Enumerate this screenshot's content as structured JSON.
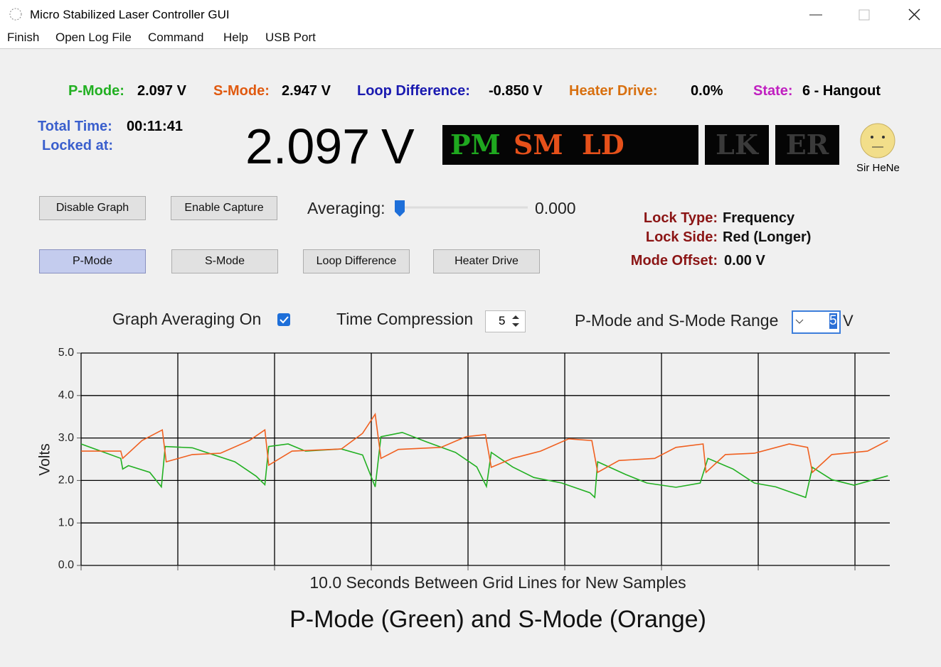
{
  "window": {
    "title": "Micro Stabilized Laser Controller GUI"
  },
  "menu": [
    "Finish",
    "Open Log File",
    "Command",
    "Help",
    "USB Port"
  ],
  "status": [
    {
      "label": "P-Mode:",
      "value": "2.097 V"
    },
    {
      "label": "S-Mode:",
      "value": "2.947 V"
    },
    {
      "label": "Loop Difference:",
      "value": "-0.850 V"
    },
    {
      "label": "Heater Drive:",
      "value": "0.0%"
    },
    {
      "label": "State:",
      "value": "6 - Hangout"
    }
  ],
  "timing": {
    "total_label": "Total Time:",
    "total_value": "00:11:41",
    "locked_label": "Locked at:"
  },
  "big_readout": {
    "value": "2.097",
    "unit": "V"
  },
  "indicators": [
    "PM",
    "SM",
    "LD",
    "LK",
    "ER"
  ],
  "avatar": "Sir HeNe",
  "buttons": [
    "Disable Graph",
    "Enable Capture"
  ],
  "averaging": {
    "label": "Averaging:",
    "value": "0.000"
  },
  "mode_buttons": [
    "P-Mode",
    "S-Mode",
    "Loop Difference",
    "Heater Drive"
  ],
  "lock": [
    {
      "label": "Lock Type:",
      "value": "Frequency"
    },
    {
      "label": "Lock Side:",
      "value": "Red (Longer)"
    },
    {
      "label": "Mode Offset:",
      "value": "0.00 V"
    }
  ],
  "options": {
    "graph_averaging": "Graph Averaging On",
    "time_compression": "Time Compression",
    "time_compression_value": "5",
    "range_label": "P-Mode and S-Mode Range",
    "range_value": "5",
    "range_unit": "V"
  },
  "chart_data": {
    "type": "line",
    "title": "P-Mode (Green) and S-Mode (Orange)",
    "xlabel": "10.0 Seconds Between Grid Lines for New Samples",
    "ylabel": "Volts",
    "xlim": [
      0,
      83.6
    ],
    "xticks": [
      0,
      10,
      20,
      30,
      40,
      50,
      60,
      70,
      80
    ],
    "ylim": [
      0,
      5
    ],
    "yticks": [
      {
        "value": 0,
        "label": "0.0"
      },
      {
        "value": 1,
        "label": "1.0"
      },
      {
        "value": 2,
        "label": "2.0"
      },
      {
        "value": 3,
        "label": "3.0"
      },
      {
        "value": 4,
        "label": "4.0"
      },
      {
        "value": 5,
        "label": "5.0"
      }
    ],
    "grid": true,
    "series": [
      {
        "color": "#22b022",
        "x": [
          0,
          4.1,
          4.3,
          4.9,
          7.1,
          8.3,
          8.7,
          11.5,
          15.9,
          18.1,
          19.0,
          19.4,
          21.4,
          23.2,
          26.9,
          29.1,
          30.4,
          31.0,
          33.2,
          35.7,
          38.7,
          40.9,
          41.9,
          42.4,
          44.6,
          46.8,
          49.7,
          52.6,
          53.1,
          53.4,
          56.3,
          58.5,
          61.5,
          64.0,
          64.8,
          67.4,
          69.6,
          71.8,
          74.9,
          75.6,
          77.6,
          79.9,
          83.4
        ],
        "values": [
          2.86,
          2.52,
          2.27,
          2.35,
          2.19,
          1.85,
          2.8,
          2.77,
          2.44,
          2.1,
          1.9,
          2.8,
          2.86,
          2.69,
          2.74,
          2.6,
          1.85,
          3.03,
          3.13,
          2.91,
          2.66,
          2.32,
          1.86,
          2.66,
          2.32,
          2.07,
          1.94,
          1.71,
          1.6,
          2.44,
          2.14,
          1.94,
          1.84,
          1.94,
          2.52,
          2.27,
          1.94,
          1.85,
          1.6,
          2.31,
          2.02,
          1.89,
          2.11
        ]
      },
      {
        "color": "#f06020",
        "x": [
          0,
          4.1,
          4.3,
          6.3,
          8.4,
          8.8,
          11.5,
          14.4,
          17.4,
          19.0,
          19.4,
          21.8,
          26.9,
          29.1,
          30.4,
          31.0,
          32.8,
          37.2,
          39.8,
          41.8,
          42.4,
          44.6,
          47.5,
          50.4,
          52.8,
          53.4,
          55.6,
          59.3,
          61.5,
          64.3,
          64.6,
          66.6,
          69.6,
          73.2,
          75.1,
          75.6,
          77.6,
          81.3,
          83.4
        ],
        "values": [
          2.69,
          2.69,
          2.52,
          2.94,
          3.19,
          2.44,
          2.61,
          2.64,
          2.94,
          3.19,
          2.36,
          2.69,
          2.74,
          3.11,
          3.56,
          2.52,
          2.73,
          2.78,
          3.03,
          3.08,
          2.31,
          2.52,
          2.69,
          2.98,
          2.94,
          2.19,
          2.47,
          2.52,
          2.78,
          2.86,
          2.19,
          2.61,
          2.64,
          2.86,
          2.78,
          2.19,
          2.61,
          2.69,
          2.94
        ]
      }
    ]
  }
}
